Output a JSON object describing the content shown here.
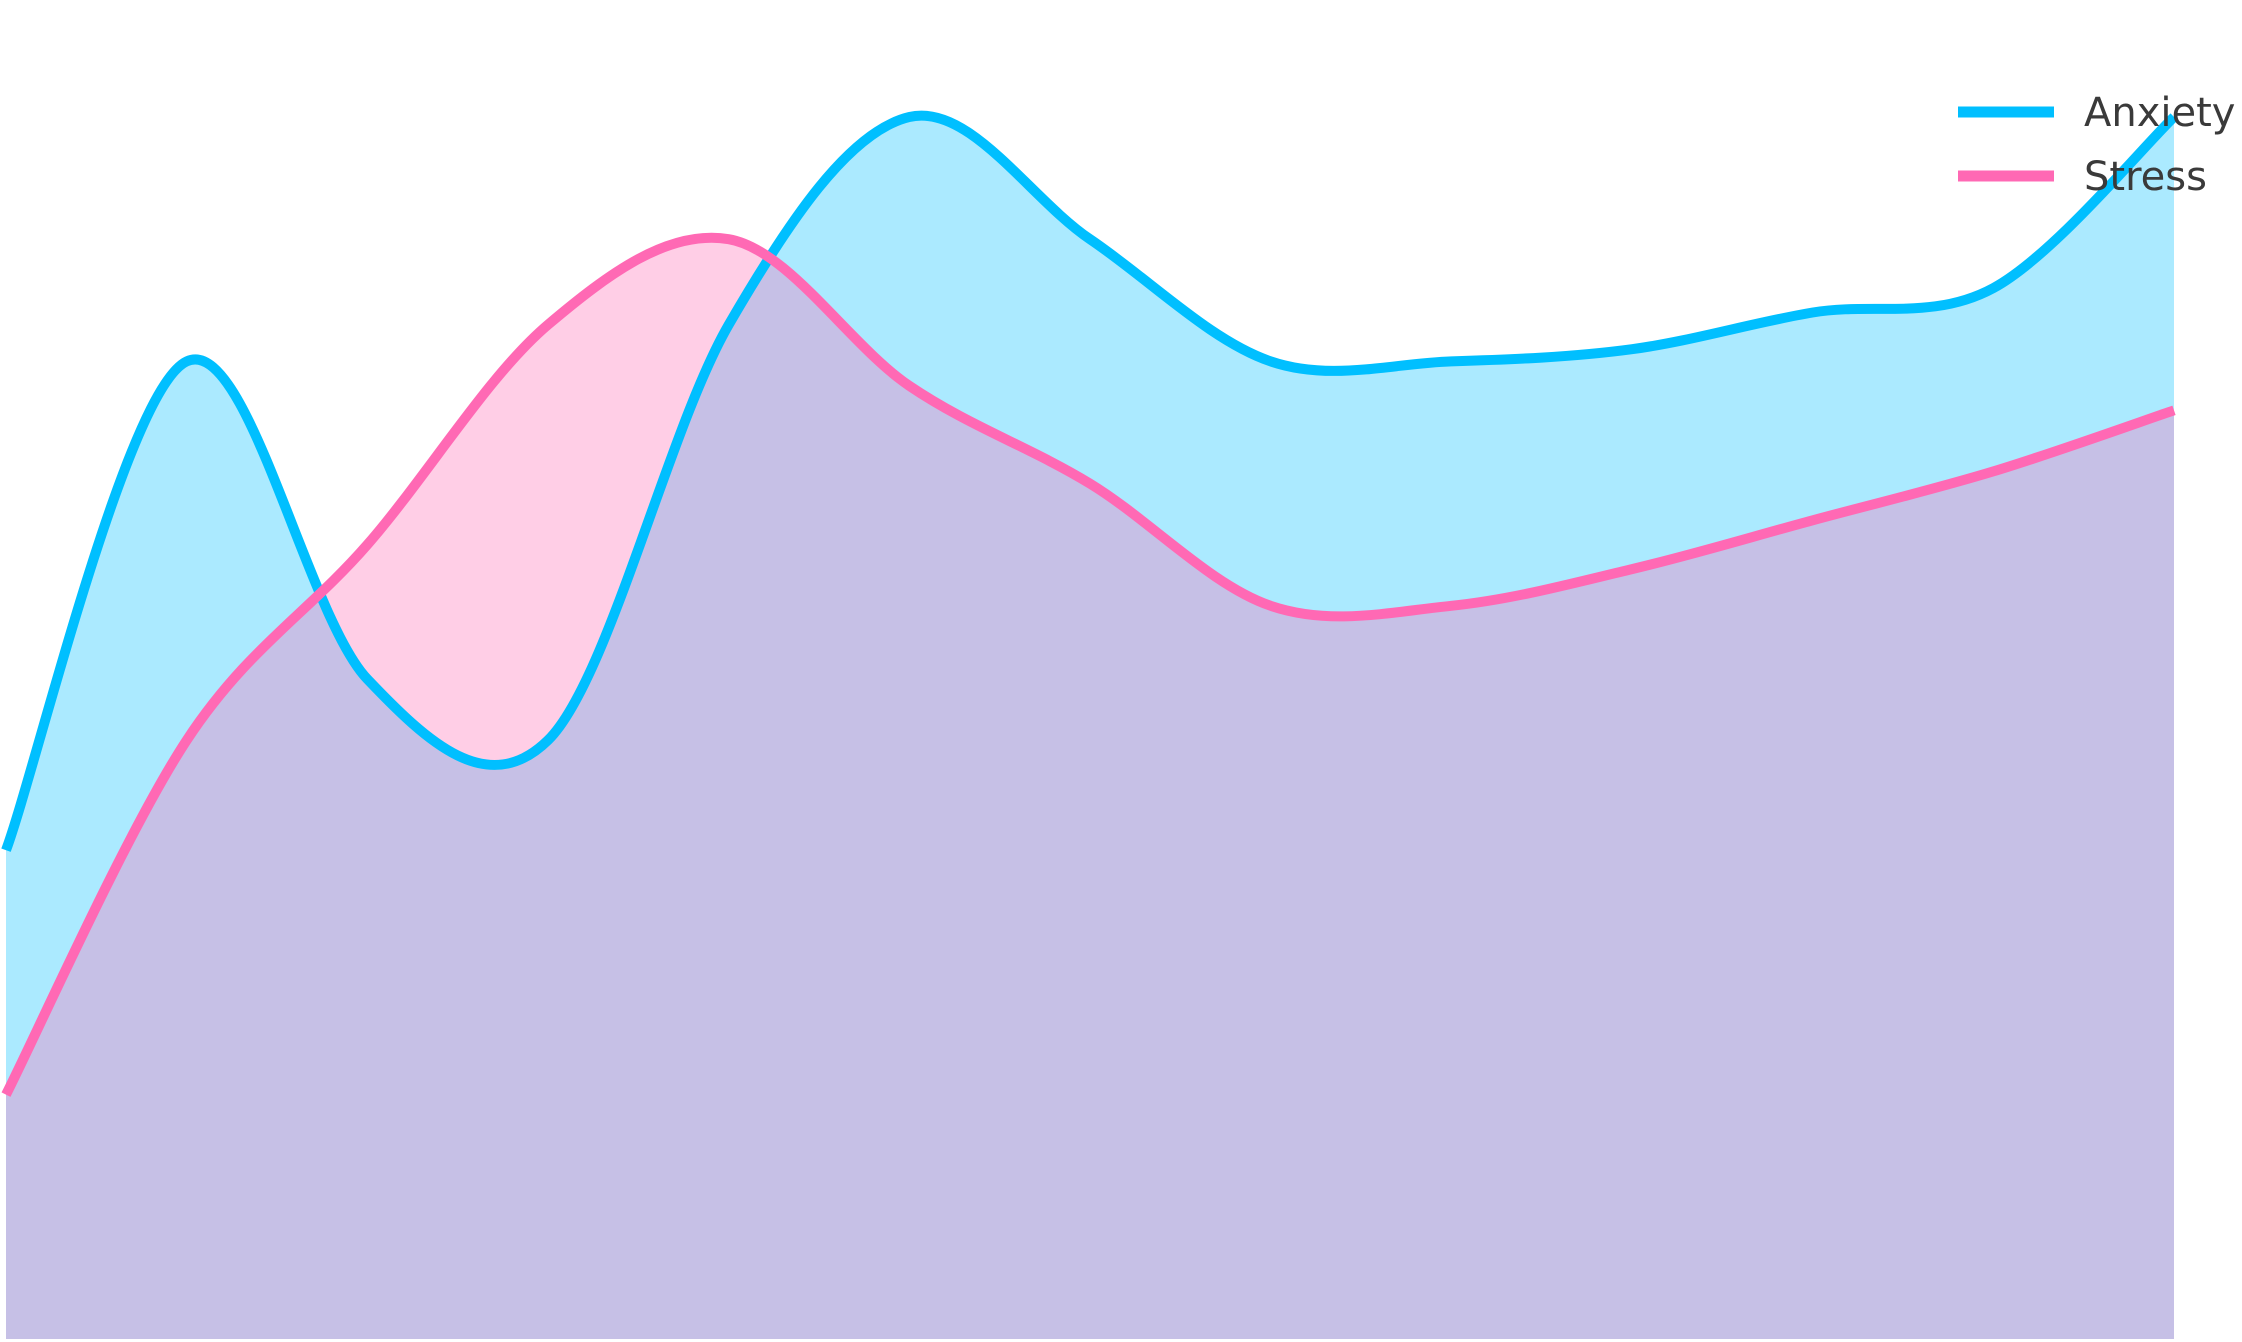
{
  "chart_data": {
    "type": "area",
    "title": "",
    "xlabel": "",
    "ylabel": "",
    "x": [
      0,
      1,
      2,
      3,
      4,
      5,
      6,
      7,
      8,
      9,
      10,
      11,
      12
    ],
    "ylim": [
      0,
      100
    ],
    "grid": false,
    "legend_position": "top-right",
    "series": [
      {
        "name": "Anxiety",
        "values": [
          40,
          80,
          54,
          49,
          83,
          100,
          90,
          80,
          80,
          81,
          84,
          86,
          100
        ],
        "color": "#00bfff",
        "fill": "#00bfff"
      },
      {
        "name": "Stress",
        "values": [
          20,
          49,
          65,
          83,
          90,
          78,
          70,
          60,
          60,
          63,
          67,
          71,
          76
        ],
        "color": "#ff69b4",
        "fill": "#ff69b4"
      }
    ]
  }
}
